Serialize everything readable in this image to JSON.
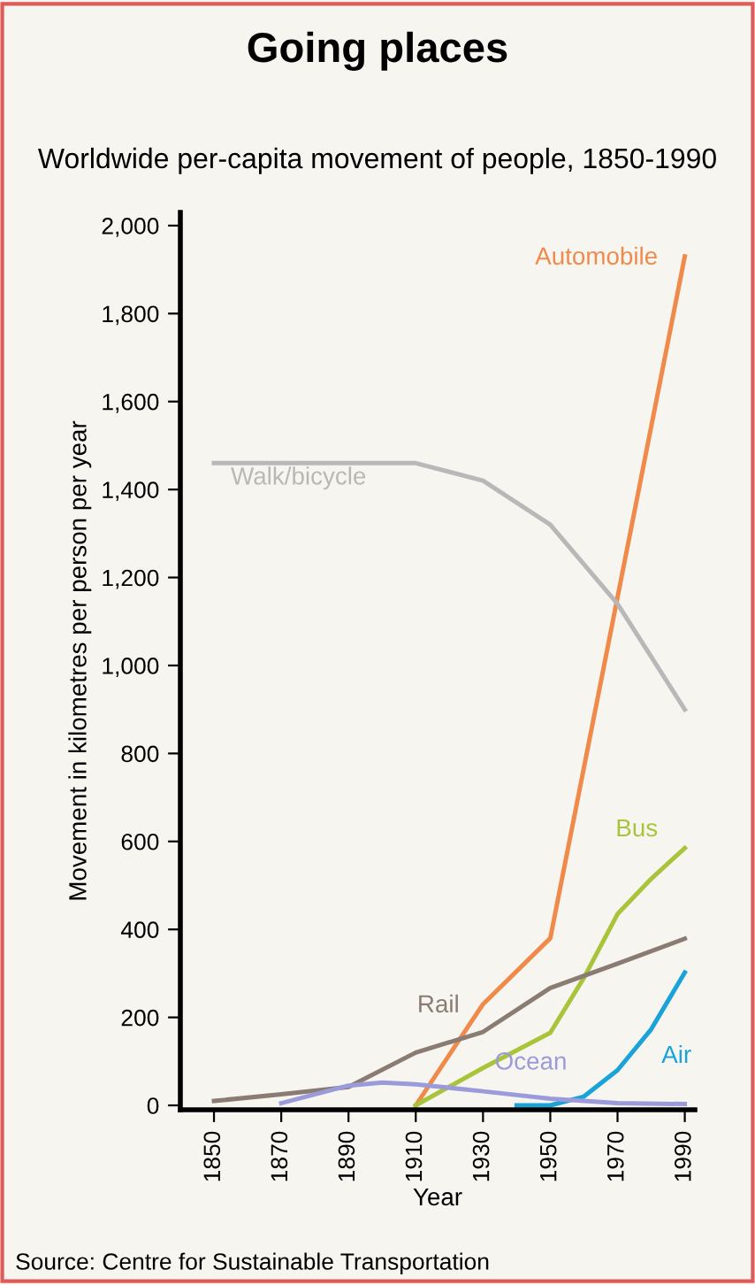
{
  "chart_data": {
    "type": "line",
    "title": "Going places",
    "subtitle": "Worldwide per-capita movement of people, 1850-1990",
    "xlabel": "Year",
    "ylabel": "Movement in kilometres per person per year",
    "series": [
      {
        "name": "Automobile",
        "color": "#f08a4b",
        "x": [
          1910,
          1930,
          1950,
          1990
        ],
        "values": [
          0,
          230,
          380,
          1930
        ]
      },
      {
        "name": "Walk/bicycle",
        "color": "#b8b8b8",
        "x": [
          1850,
          1910,
          1930,
          1950,
          1970,
          1990
        ],
        "values": [
          1460,
          1460,
          1420,
          1320,
          1140,
          900
        ]
      },
      {
        "name": "Bus",
        "color": "#a8c43a",
        "x": [
          1910,
          1930,
          1950,
          1960,
          1970,
          1980,
          1990
        ],
        "values": [
          0,
          85,
          165,
          290,
          435,
          515,
          585
        ]
      },
      {
        "name": "Rail",
        "color": "#8a7b73",
        "x": [
          1850,
          1870,
          1890,
          1910,
          1930,
          1950,
          1970,
          1990
        ],
        "values": [
          10,
          25,
          42,
          120,
          167,
          267,
          322,
          379
        ]
      },
      {
        "name": "Air",
        "color": "#1aa3d8",
        "x": [
          1940,
          1950,
          1960,
          1970,
          1980,
          1990
        ],
        "values": [
          0,
          0,
          20,
          80,
          173,
          302
        ]
      },
      {
        "name": "Ocean",
        "color": "#9b9bdc",
        "x": [
          1870,
          1890,
          1900,
          1910,
          1930,
          1950,
          1970,
          1990
        ],
        "values": [
          5,
          45,
          52,
          48,
          32,
          15,
          5,
          3
        ]
      }
    ],
    "xlim": [
      1840,
      1993
    ],
    "xticks": [
      1850,
      1870,
      1890,
      1910,
      1930,
      1950,
      1970,
      1990
    ],
    "ylim": [
      -10,
      2030
    ],
    "yticks": [
      0,
      200,
      400,
      600,
      800,
      {
        "value": 1000,
        "label": "1,000"
      },
      {
        "value": 1200,
        "label": "1,200"
      },
      {
        "value": 1400,
        "label": "1,400"
      },
      {
        "value": 1600,
        "label": "1,600"
      },
      {
        "value": 1800,
        "label": "1,800"
      },
      {
        "value": 2000,
        "label": "2,000"
      }
    ],
    "grid": false,
    "legend": false,
    "annotations": [
      "Source: Centre for Sustainable Transportation"
    ]
  }
}
